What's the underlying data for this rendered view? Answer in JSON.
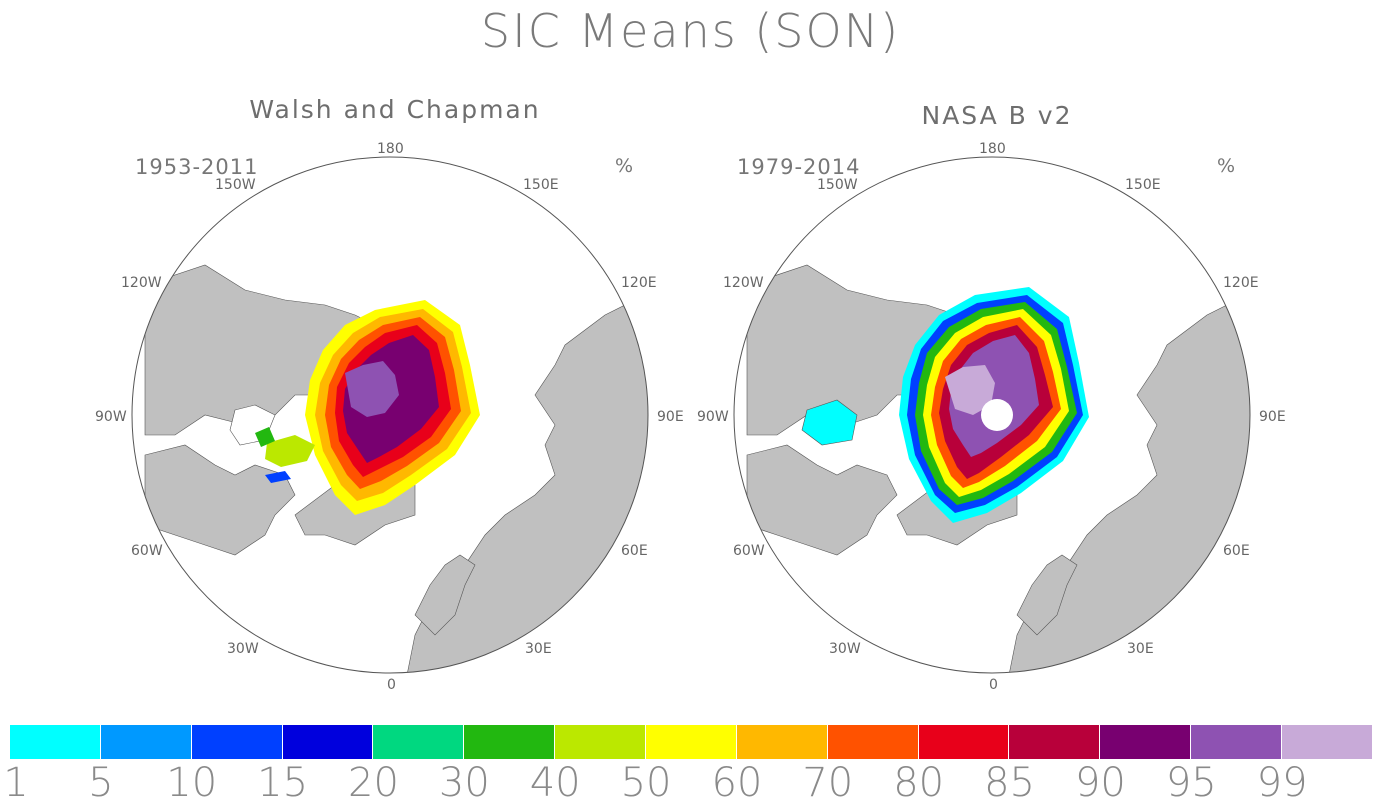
{
  "title": "SIC Means (SON)",
  "unit": "%",
  "panels": [
    {
      "title": "Walsh and Chapman",
      "period": "1953-2011"
    },
    {
      "title": "NASA B v2",
      "period": "1979-2014"
    }
  ],
  "longitudes": [
    "180",
    "150W",
    "150E",
    "120W",
    "120E",
    "90W",
    "90E",
    "60W",
    "60E",
    "30W",
    "30E",
    "0"
  ],
  "colorbar": {
    "labels": [
      "1",
      "5",
      "10",
      "15",
      "20",
      "30",
      "40",
      "50",
      "60",
      "70",
      "80",
      "85",
      "90",
      "95",
      "99"
    ],
    "colors": [
      "#00ffff",
      "#0099ff",
      "#0040ff",
      "#0000dd",
      "#00d880",
      "#22b810",
      "#bbe800",
      "#ffff00",
      "#ffb800",
      "#ff5200",
      "#e8001a",
      "#b8003a",
      "#780070",
      "#8e52b2",
      "#c8aad8"
    ]
  },
  "colors": {
    "land": "#c0c0c0",
    "ocean": "#ffffff",
    "coast": "#555555"
  }
}
